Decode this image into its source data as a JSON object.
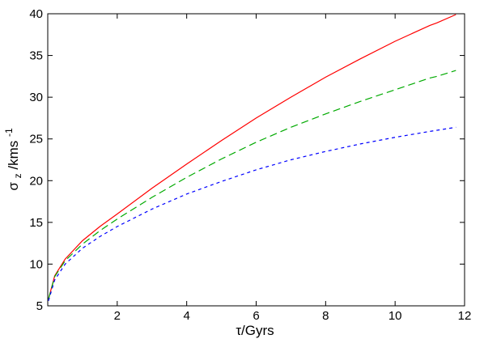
{
  "chart_data": {
    "type": "line",
    "xlabel": "τ/Gyrs",
    "ylabel": {
      "symbol": "σ",
      "subscript": "z",
      "unit": "/kms",
      "superscript": "-1"
    },
    "xlim": [
      0,
      12
    ],
    "ylim": [
      5,
      40
    ],
    "xticks": [
      2,
      4,
      6,
      8,
      10,
      12
    ],
    "yticks": [
      5,
      10,
      15,
      20,
      25,
      30,
      35,
      40
    ],
    "grid": false,
    "series": [
      {
        "color": "#ff0000",
        "dash": "solid",
        "x": [
          0.02,
          0.2,
          0.5,
          1,
          1.5,
          2,
          3,
          4,
          5,
          6,
          7,
          8,
          9,
          10,
          11,
          11.2,
          11.75
        ],
        "y": [
          5.8,
          8.6,
          10.6,
          12.8,
          14.5,
          16.0,
          19.1,
          22.0,
          24.8,
          27.5,
          30.0,
          32.4,
          34.6,
          36.7,
          38.6,
          38.9,
          39.9
        ]
      },
      {
        "color": "#00aa00",
        "dash": "long-dash",
        "x": [
          0.02,
          0.2,
          0.5,
          1,
          1.5,
          2,
          3,
          4,
          5,
          6,
          7,
          8,
          9,
          10,
          11,
          11.2,
          11.75
        ],
        "y": [
          5.8,
          8.5,
          10.4,
          12.4,
          14.0,
          15.4,
          18.0,
          20.4,
          22.6,
          24.6,
          26.4,
          28.0,
          29.5,
          30.9,
          32.3,
          32.5,
          33.2
        ]
      },
      {
        "color": "#0000ff",
        "dash": "short-dash",
        "x": [
          0.02,
          0.2,
          0.5,
          1,
          1.5,
          2,
          3,
          4,
          5,
          6,
          7,
          8,
          9,
          10,
          11,
          11.75
        ],
        "y": [
          5.6,
          8.1,
          10.0,
          11.9,
          13.3,
          14.5,
          16.6,
          18.4,
          19.9,
          21.3,
          22.5,
          23.5,
          24.4,
          25.2,
          25.9,
          26.4
        ]
      }
    ]
  }
}
